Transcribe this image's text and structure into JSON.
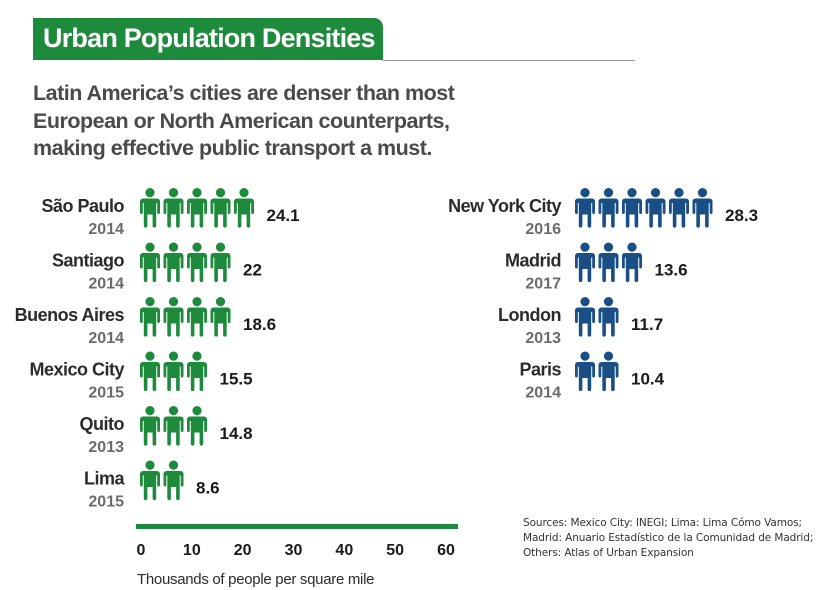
{
  "title": "Urban Population Densities",
  "subtitle": "Latin America’s cities are denser than most European or North American counterparts, making effective public transport a must.",
  "sources": "Sources: Mexico City: INEGI; Lima: Lima Cómo Vamos; Madrid: Anuario Estadístico de la Comunidad de Madrid; Others: Atlas of Urban Expansion",
  "colors": {
    "latin_america": "#1e8a3c",
    "europe_north_america": "#1a4f86",
    "axis": "#1e8a3c",
    "label_year": "#6b6b6b",
    "title_bg": "#1e8a3c"
  },
  "chart_data": {
    "type": "bar",
    "unit_note": "each person icon represents 5 thousand people per square mile",
    "xlabel": "Thousands of people per square mile",
    "xlim": [
      0,
      60
    ],
    "xticks": [
      "0",
      "10",
      "20",
      "30",
      "40",
      "50",
      "60"
    ],
    "series": [
      {
        "name": "",
        "color_key": "latin_america",
        "points": [
          {
            "city": "São Paulo",
            "year": "2014",
            "value": 24.1,
            "label": "24.1"
          },
          {
            "city": "Santiago",
            "year": "2014",
            "value": 22,
            "label": "22"
          },
          {
            "city": "Buenos Aires",
            "year": "2014",
            "value": 18.6,
            "label": "18.6"
          },
          {
            "city": "Mexico City",
            "year": "2015",
            "value": 15.5,
            "label": "15.5"
          },
          {
            "city": "Quito",
            "year": "2013",
            "value": 14.8,
            "label": "14.8"
          },
          {
            "city": "Lima",
            "year": "2015",
            "value": 8.6,
            "label": "8.6"
          }
        ]
      },
      {
        "name": "",
        "color_key": "europe_north_america",
        "points": [
          {
            "city": "New York City",
            "year": "2016",
            "value": 28.3,
            "label": "28.3"
          },
          {
            "city": "Madrid",
            "year": "2017",
            "value": 13.6,
            "label": "13.6"
          },
          {
            "city": "London",
            "year": "2013",
            "value": 11.7,
            "label": "11.7"
          },
          {
            "city": "Paris",
            "year": "2014",
            "value": 10.4,
            "label": "10.4"
          }
        ]
      }
    ]
  }
}
